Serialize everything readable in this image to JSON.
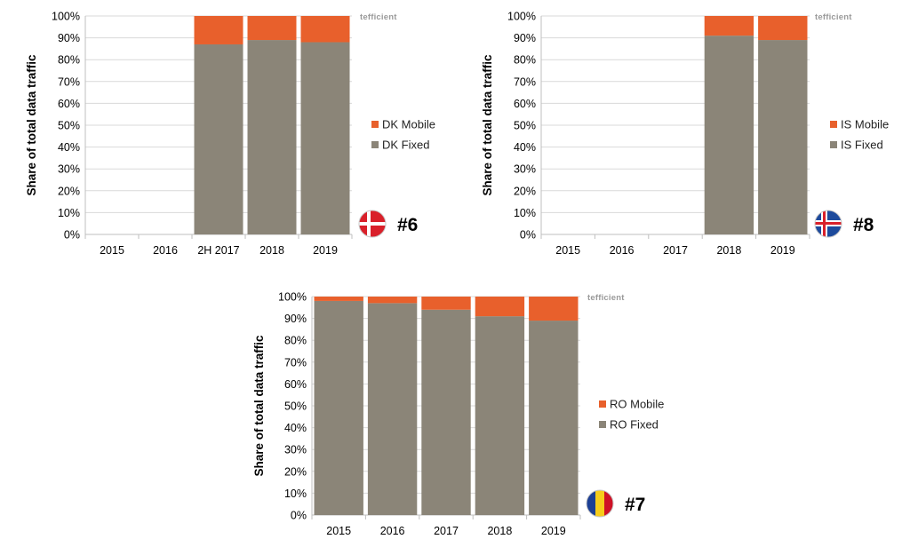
{
  "colors": {
    "fixed": "#8b8578",
    "mobile": "#e8602c",
    "grid": "#d9d9d9",
    "axis": "#bfbfbf"
  },
  "brand_text": "tefficient",
  "chart_data": [
    {
      "type": "bar",
      "stacked": true,
      "ylabel": "Share of total data traffic",
      "ylim": [
        0,
        100
      ],
      "yticks": [
        "0%",
        "10%",
        "20%",
        "30%",
        "40%",
        "50%",
        "60%",
        "70%",
        "80%",
        "90%",
        "100%"
      ],
      "categories": [
        "2015",
        "2016",
        "2H 2017",
        "2018",
        "2019"
      ],
      "series": [
        {
          "name": "DK Fixed",
          "values": [
            null,
            null,
            87,
            89,
            88
          ]
        },
        {
          "name": "DK Mobile",
          "values": [
            null,
            null,
            13,
            11,
            12
          ]
        }
      ],
      "legend": "right",
      "grid": true,
      "rank": "#6",
      "flag": "denmark-flag-icon"
    },
    {
      "type": "bar",
      "stacked": true,
      "ylabel": "Share of total data traffic",
      "ylim": [
        0,
        100
      ],
      "yticks": [
        "0%",
        "10%",
        "20%",
        "30%",
        "40%",
        "50%",
        "60%",
        "70%",
        "80%",
        "90%",
        "100%"
      ],
      "categories": [
        "2015",
        "2016",
        "2017",
        "2018",
        "2019"
      ],
      "series": [
        {
          "name": "IS Fixed",
          "values": [
            null,
            null,
            null,
            91,
            89
          ]
        },
        {
          "name": "IS Mobile",
          "values": [
            null,
            null,
            null,
            9,
            11
          ]
        }
      ],
      "legend": "right",
      "grid": true,
      "rank": "#8",
      "flag": "iceland-flag-icon"
    },
    {
      "type": "bar",
      "stacked": true,
      "ylabel": "Share of total data traffic",
      "ylim": [
        0,
        100
      ],
      "yticks": [
        "0%",
        "10%",
        "20%",
        "30%",
        "40%",
        "50%",
        "60%",
        "70%",
        "80%",
        "90%",
        "100%"
      ],
      "categories": [
        "2015",
        "2016",
        "2017",
        "2018",
        "2019"
      ],
      "series": [
        {
          "name": "RO Fixed",
          "values": [
            98,
            97,
            94,
            91,
            89
          ]
        },
        {
          "name": "RO Mobile",
          "values": [
            2,
            3,
            6,
            9,
            11
          ]
        }
      ],
      "legend": "right",
      "grid": true,
      "rank": "#7",
      "flag": "romania-flag-icon"
    }
  ]
}
